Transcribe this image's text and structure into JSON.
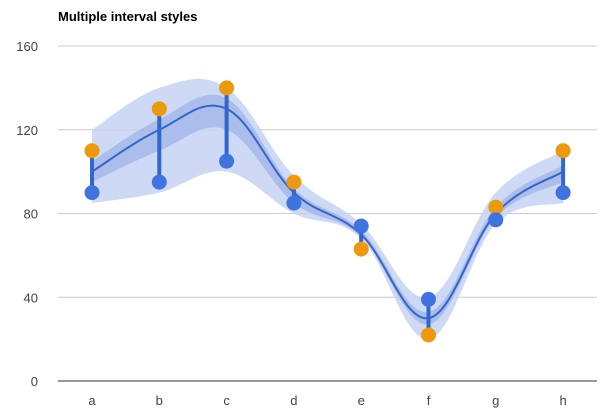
{
  "chart_data": {
    "type": "line",
    "title": "Multiple interval styles",
    "xlabel": "",
    "ylabel": "",
    "categories": [
      "a",
      "b",
      "c",
      "d",
      "e",
      "f",
      "g",
      "h"
    ],
    "ylim": [
      0,
      160
    ],
    "yticks": [
      0,
      40,
      80,
      120,
      160
    ],
    "grid": true,
    "legend": "none",
    "series": [
      {
        "values": [
          100,
          120,
          130,
          90,
          70,
          30,
          80,
          100
        ],
        "color": "#3366cc",
        "curve": "smooth"
      }
    ],
    "intervals": {
      "outer_area": {
        "low": [
          85,
          90,
          100,
          80,
          68,
          20,
          75,
          85
        ],
        "high": [
          120,
          140,
          140,
          98,
          75,
          40,
          90,
          110
        ],
        "color": "#c6d3f3"
      },
      "inner_area": {
        "low": [
          95,
          110,
          120,
          85,
          69,
          27,
          78,
          95
        ],
        "high": [
          105,
          125,
          135,
          92,
          72,
          33,
          83,
          103
        ],
        "color": "#a3b7e9"
      },
      "sticks": {
        "low": [
          90,
          95,
          105,
          85,
          63,
          22,
          77,
          90
        ],
        "high": [
          110,
          130,
          140,
          95,
          74,
          39,
          83,
          110
        ],
        "color": "#3366cc"
      }
    },
    "points": {
      "blue": {
        "values": [
          90,
          95,
          105,
          85,
          74,
          39,
          77,
          90
        ],
        "color": "#3f74e0"
      },
      "orange": {
        "values": [
          110,
          130,
          140,
          95,
          63,
          22,
          83,
          110
        ],
        "color": "#ec9a0c"
      }
    }
  }
}
